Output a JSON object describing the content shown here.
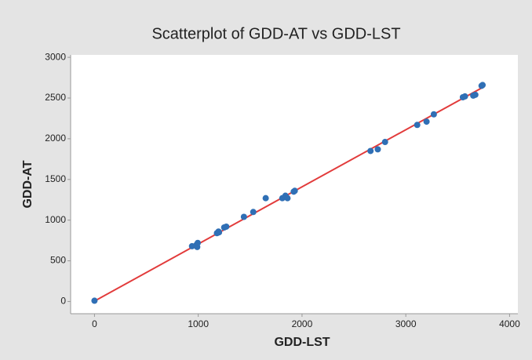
{
  "chart_data": {
    "type": "scatter",
    "title": "Scatterplot of GDD-AT vs GDD-LST",
    "x_label": "GDD-LST",
    "y_label": "GDD-AT",
    "x": [
      0,
      940,
      985,
      990,
      995,
      1180,
      1195,
      1200,
      1250,
      1270,
      1440,
      1530,
      1650,
      1810,
      1840,
      1860,
      1920,
      1930,
      2660,
      2730,
      2800,
      3110,
      3200,
      3270,
      3550,
      3570,
      3650,
      3670,
      3730,
      3740
    ],
    "y": [
      10,
      680,
      700,
      670,
      720,
      840,
      860,
      850,
      910,
      920,
      1040,
      1100,
      1270,
      1270,
      1300,
      1270,
      1350,
      1360,
      1850,
      1870,
      1960,
      2170,
      2210,
      2300,
      2510,
      2520,
      2530,
      2540,
      2650,
      2660
    ],
    "color": "#2f6fb5",
    "trend_line": {
      "color": "#e23b3b",
      "x": [
        0,
        3740
      ],
      "y": [
        5,
        2630
      ]
    },
    "xlim": [
      -230,
      4080
    ],
    "ylim": [
      -150,
      3030
    ],
    "xticks": [
      0,
      1000,
      2000,
      3000,
      4000
    ],
    "yticks": [
      0,
      500,
      1000,
      1500,
      2000,
      2500,
      3000
    ]
  }
}
